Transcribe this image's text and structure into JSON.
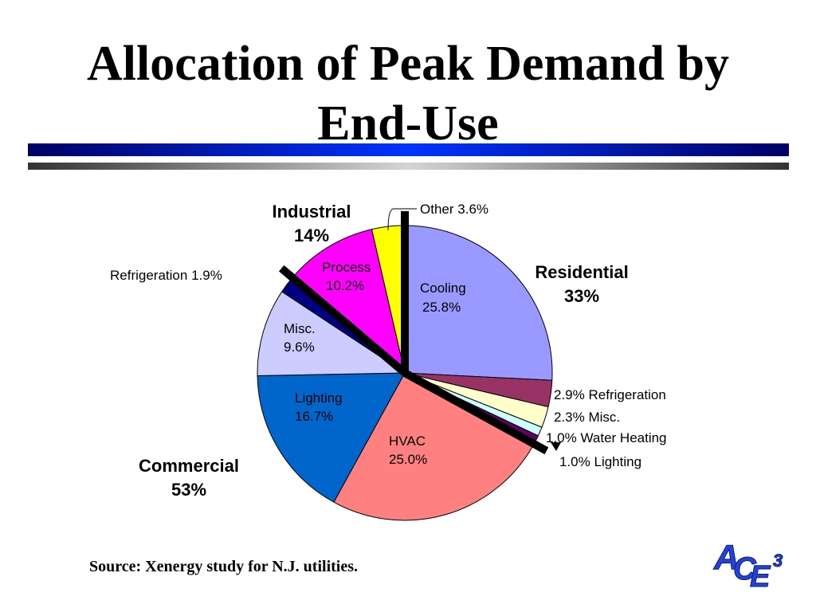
{
  "chart_data": {
    "type": "pie",
    "title": "Allocation of Peak Demand by End-Use",
    "groups": [
      {
        "name": "Residential",
        "pct_label": "33%",
        "slices": [
          {
            "label": "Cooling",
            "value": 25.8,
            "pct_label": "25.8%",
            "color": "#9999FF"
          },
          {
            "label": "Refrigeration",
            "value": 2.9,
            "pct_label": "2.9%",
            "color": "#993366"
          },
          {
            "label": "Misc.",
            "value": 2.3,
            "pct_label": "2.3%",
            "color": "#FFFFCC"
          },
          {
            "label": "Water Heating",
            "value": 1.0,
            "pct_label": "1.0%",
            "color": "#CCFFFF"
          },
          {
            "label": "Lighting",
            "value": 1.0,
            "pct_label": "1.0%",
            "color": "#660066"
          }
        ]
      },
      {
        "name": "Commercial",
        "pct_label": "53%",
        "slices": [
          {
            "label": "HVAC",
            "value": 25.0,
            "pct_label": "25.0%",
            "color": "#FF8080"
          },
          {
            "label": "Lighting",
            "value": 16.7,
            "pct_label": "16.7%",
            "color": "#0066CC"
          },
          {
            "label": "Misc.",
            "value": 9.6,
            "pct_label": "9.6%",
            "color": "#CCCCFF"
          },
          {
            "label": "Refrigeration",
            "value": 1.9,
            "pct_label": "1.9%",
            "color": "#000080"
          }
        ]
      },
      {
        "name": "Industrial",
        "pct_label": "14%",
        "slices": [
          {
            "label": "Process",
            "value": 10.2,
            "pct_label": "10.2%",
            "color": "#FF00FF"
          },
          {
            "label": "Other",
            "value": 3.6,
            "pct_label": "3.6%",
            "color": "#FFFF00"
          }
        ]
      }
    ],
    "source": "Source: Xenergy study for N.J. utilities."
  },
  "logo": {
    "letters": [
      "A",
      "C",
      "E"
    ],
    "superscript": "3"
  },
  "theme": {
    "accent_bar_colors": [
      "#000066",
      "#0033ff",
      "#000066"
    ],
    "rule_bar_colors": [
      "#333333",
      "#d4d4d4",
      "#333333"
    ],
    "logo_fill": "#2443d6",
    "divider_color": "#000000",
    "slice_outline_color": "#000000"
  }
}
